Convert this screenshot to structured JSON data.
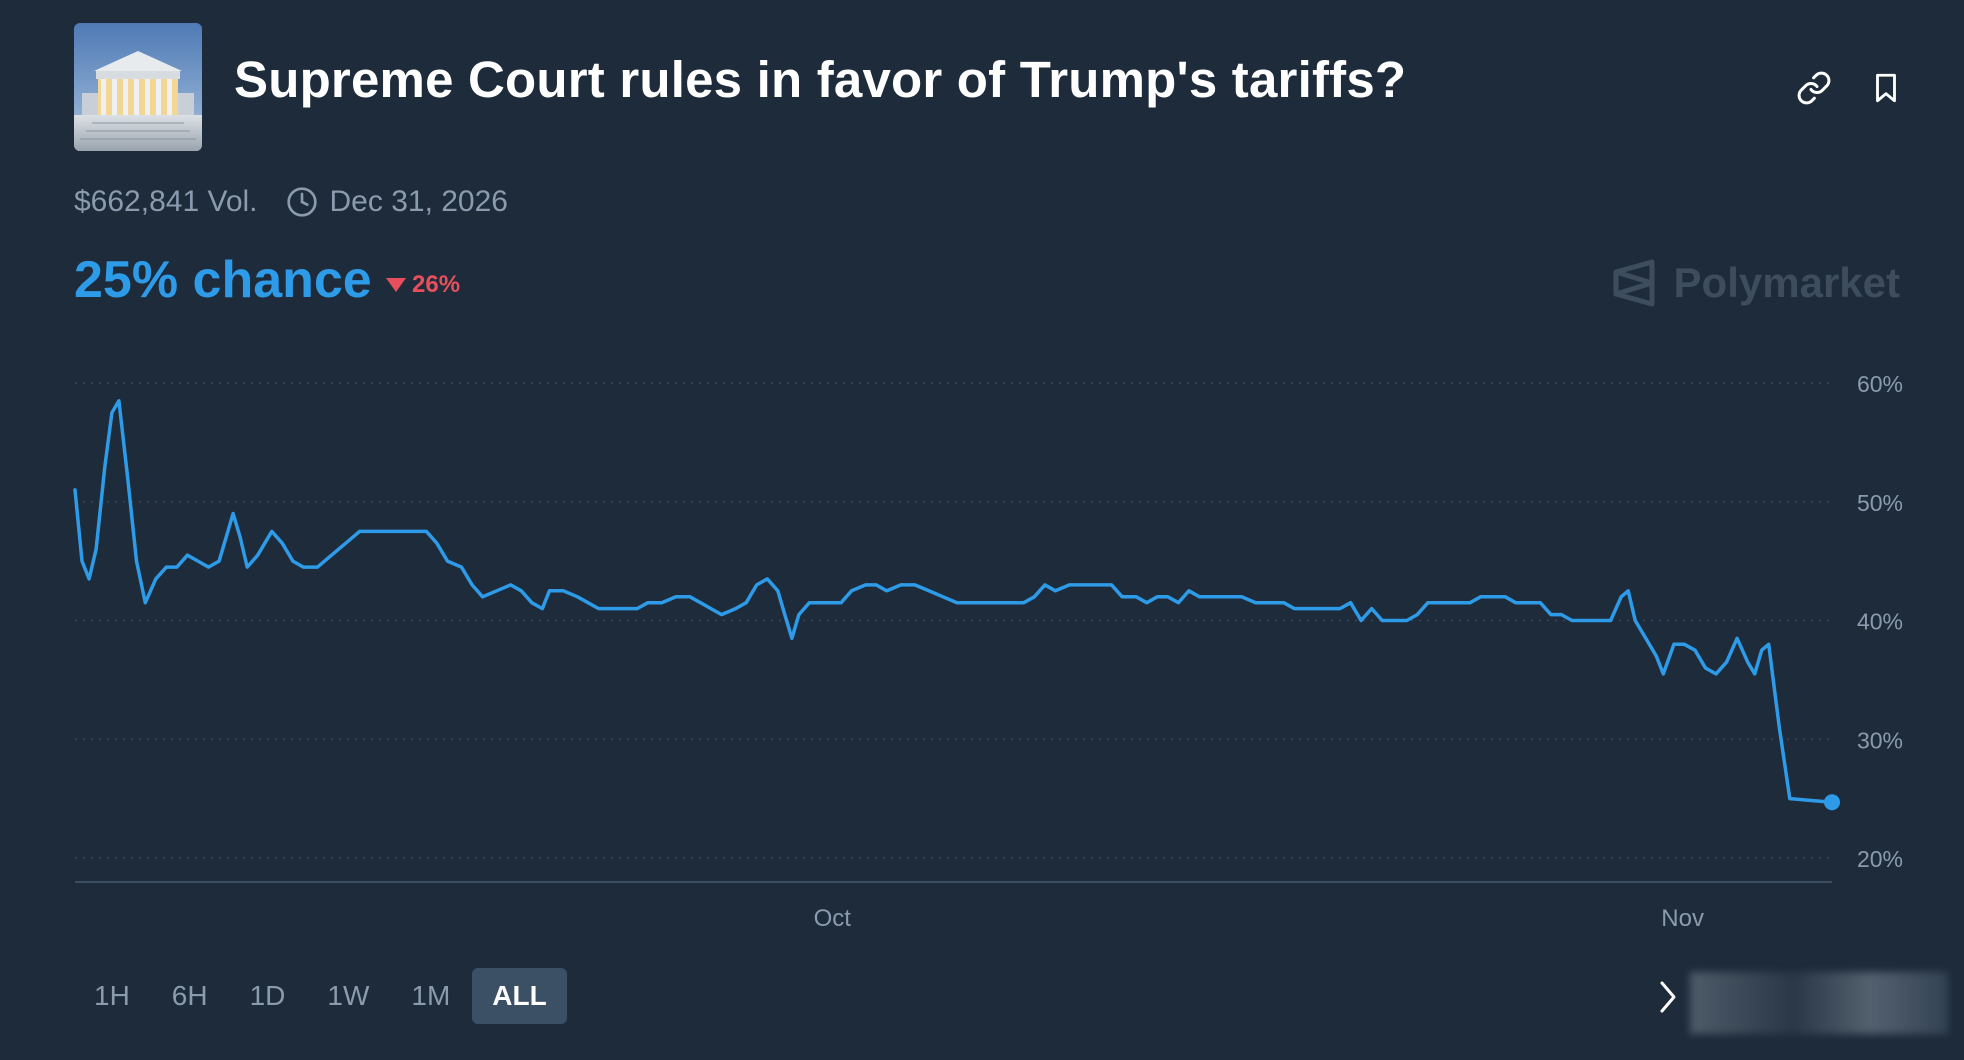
{
  "header": {
    "title": "Supreme Court rules in favor of Trump's tariffs?",
    "thumbnail_icon": "supreme-court-image",
    "link_icon": "link-icon",
    "bookmark_icon": "bookmark-icon"
  },
  "meta": {
    "volume": "$662,841 Vol.",
    "end_date": "Dec 31, 2026",
    "clock_icon": "clock-icon"
  },
  "stats": {
    "chance": "25% chance",
    "delta": "26%",
    "delta_direction": "down",
    "delta_color": "#e84f5c",
    "accent_color": "#2e9be8"
  },
  "brand": {
    "name": "Polymarket"
  },
  "range_tabs": {
    "items": [
      {
        "label": "1H"
      },
      {
        "label": "6H"
      },
      {
        "label": "1D"
      },
      {
        "label": "1W"
      },
      {
        "label": "1M"
      },
      {
        "label": "ALL"
      }
    ],
    "selected": "ALL"
  },
  "chart_data": {
    "type": "line",
    "title": "",
    "xlabel": "",
    "ylabel": "",
    "ylim": [
      18,
      62
    ],
    "y_ticks": [
      60,
      50,
      40,
      30,
      20
    ],
    "y_tick_labels": [
      "60%",
      "50%",
      "40%",
      "30%",
      "20%"
    ],
    "x_tick_labels": [
      {
        "label": "Oct",
        "x": 0.431
      },
      {
        "label": "Nov",
        "x": 0.915
      }
    ],
    "grid": true,
    "line_color": "#2e9be8",
    "series": [
      {
        "values": [
          [
            0,
            51
          ],
          [
            0.004,
            45
          ],
          [
            0.008,
            43.5
          ],
          [
            0.012,
            46
          ],
          [
            0.017,
            53
          ],
          [
            0.021,
            57.5
          ],
          [
            0.025,
            58.5
          ],
          [
            0.03,
            52
          ],
          [
            0.035,
            45
          ],
          [
            0.04,
            41.5
          ],
          [
            0.046,
            43.5
          ],
          [
            0.052,
            44.5
          ],
          [
            0.058,
            44.5
          ],
          [
            0.064,
            45.5
          ],
          [
            0.07,
            45
          ],
          [
            0.076,
            44.5
          ],
          [
            0.082,
            45
          ],
          [
            0.086,
            47
          ],
          [
            0.09,
            49
          ],
          [
            0.094,
            47
          ],
          [
            0.098,
            44.5
          ],
          [
            0.104,
            45.5
          ],
          [
            0.112,
            47.5
          ],
          [
            0.118,
            46.5
          ],
          [
            0.124,
            45
          ],
          [
            0.13,
            44.5
          ],
          [
            0.138,
            44.5
          ],
          [
            0.146,
            45.5
          ],
          [
            0.154,
            46.5
          ],
          [
            0.162,
            47.5
          ],
          [
            0.17,
            47.5
          ],
          [
            0.18,
            47.5
          ],
          [
            0.19,
            47.5
          ],
          [
            0.2,
            47.5
          ],
          [
            0.206,
            46.5
          ],
          [
            0.212,
            45
          ],
          [
            0.22,
            44.5
          ],
          [
            0.226,
            43
          ],
          [
            0.232,
            42
          ],
          [
            0.24,
            42.5
          ],
          [
            0.248,
            43
          ],
          [
            0.254,
            42.5
          ],
          [
            0.26,
            41.5
          ],
          [
            0.266,
            41
          ],
          [
            0.27,
            42.5
          ],
          [
            0.278,
            42.5
          ],
          [
            0.286,
            42
          ],
          [
            0.292,
            41.5
          ],
          [
            0.298,
            41
          ],
          [
            0.31,
            41
          ],
          [
            0.32,
            41
          ],
          [
            0.326,
            41.5
          ],
          [
            0.334,
            41.5
          ],
          [
            0.342,
            42
          ],
          [
            0.35,
            42
          ],
          [
            0.356,
            41.5
          ],
          [
            0.362,
            41
          ],
          [
            0.368,
            40.5
          ],
          [
            0.376,
            41
          ],
          [
            0.382,
            41.5
          ],
          [
            0.388,
            43
          ],
          [
            0.394,
            43.5
          ],
          [
            0.4,
            42.5
          ],
          [
            0.404,
            40.5
          ],
          [
            0.408,
            38.5
          ],
          [
            0.412,
            40.5
          ],
          [
            0.418,
            41.5
          ],
          [
            0.424,
            41.5
          ],
          [
            0.43,
            41.5
          ],
          [
            0.436,
            41.5
          ],
          [
            0.442,
            42.5
          ],
          [
            0.45,
            43
          ],
          [
            0.456,
            43
          ],
          [
            0.462,
            42.5
          ],
          [
            0.47,
            43
          ],
          [
            0.478,
            43
          ],
          [
            0.486,
            42.5
          ],
          [
            0.494,
            42
          ],
          [
            0.502,
            41.5
          ],
          [
            0.51,
            41.5
          ],
          [
            0.52,
            41.5
          ],
          [
            0.53,
            41.5
          ],
          [
            0.54,
            41.5
          ],
          [
            0.546,
            42
          ],
          [
            0.552,
            43
          ],
          [
            0.558,
            42.5
          ],
          [
            0.566,
            43
          ],
          [
            0.574,
            43
          ],
          [
            0.582,
            43
          ],
          [
            0.59,
            43
          ],
          [
            0.596,
            42
          ],
          [
            0.604,
            42
          ],
          [
            0.61,
            41.5
          ],
          [
            0.616,
            42
          ],
          [
            0.622,
            42
          ],
          [
            0.628,
            41.5
          ],
          [
            0.634,
            42.5
          ],
          [
            0.64,
            42
          ],
          [
            0.648,
            42
          ],
          [
            0.656,
            42
          ],
          [
            0.664,
            42
          ],
          [
            0.672,
            41.5
          ],
          [
            0.68,
            41.5
          ],
          [
            0.688,
            41.5
          ],
          [
            0.694,
            41
          ],
          [
            0.704,
            41
          ],
          [
            0.714,
            41
          ],
          [
            0.72,
            41
          ],
          [
            0.726,
            41.5
          ],
          [
            0.732,
            40
          ],
          [
            0.738,
            41
          ],
          [
            0.744,
            40
          ],
          [
            0.752,
            40
          ],
          [
            0.758,
            40
          ],
          [
            0.764,
            40.5
          ],
          [
            0.77,
            41.5
          ],
          [
            0.778,
            41.5
          ],
          [
            0.786,
            41.5
          ],
          [
            0.794,
            41.5
          ],
          [
            0.8,
            42
          ],
          [
            0.808,
            42
          ],
          [
            0.814,
            42
          ],
          [
            0.82,
            41.5
          ],
          [
            0.828,
            41.5
          ],
          [
            0.834,
            41.5
          ],
          [
            0.84,
            40.5
          ],
          [
            0.846,
            40.5
          ],
          [
            0.852,
            40
          ],
          [
            0.86,
            40
          ],
          [
            0.868,
            40
          ],
          [
            0.874,
            40
          ],
          [
            0.88,
            42
          ],
          [
            0.884,
            42.5
          ],
          [
            0.888,
            40
          ],
          [
            0.894,
            38.5
          ],
          [
            0.9,
            37
          ],
          [
            0.904,
            35.5
          ],
          [
            0.91,
            38
          ],
          [
            0.916,
            38
          ],
          [
            0.922,
            37.5
          ],
          [
            0.928,
            36
          ],
          [
            0.934,
            35.5
          ],
          [
            0.94,
            36.5
          ],
          [
            0.946,
            38.5
          ],
          [
            0.952,
            36.5
          ],
          [
            0.956,
            35.5
          ],
          [
            0.96,
            37.5
          ],
          [
            0.964,
            38
          ],
          [
            0.97,
            31
          ],
          [
            0.976,
            25
          ],
          [
            1.0,
            24.7
          ]
        ]
      }
    ],
    "last_value": 24.7
  }
}
